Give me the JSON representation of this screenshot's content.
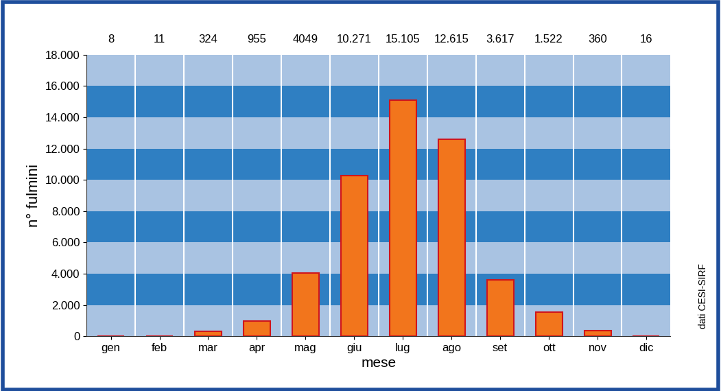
{
  "chart_data": {
    "type": "bar",
    "x_label": "mese",
    "y_label": "n° fulmini",
    "source": "dati CESI-SIRF",
    "categories": [
      "gen",
      "feb",
      "mar",
      "apr",
      "mag",
      "giu",
      "lug",
      "ago",
      "set",
      "ott",
      "nov",
      "dic"
    ],
    "values": [
      8,
      11,
      324,
      955,
      4049,
      10271,
      15105,
      12615,
      3617,
      1522,
      360,
      16
    ],
    "value_labels": [
      "8",
      "11",
      "324",
      "955",
      "4049",
      "10.271",
      "15.105",
      "12.615",
      "3.617",
      "1.522",
      "360",
      "16"
    ],
    "data_labels": true,
    "color": "#f2751c",
    "ylim": [
      0,
      18000
    ],
    "yticks": [
      {
        "value": 0,
        "label": "0"
      },
      {
        "value": 2000,
        "label": "2.000"
      },
      {
        "value": 4000,
        "label": "4.000"
      },
      {
        "value": 6000,
        "label": "6.000"
      },
      {
        "value": 8000,
        "label": "8.000"
      },
      {
        "value": 10000,
        "label": "10.000"
      },
      {
        "value": 12000,
        "label": "12.000"
      },
      {
        "value": 14000,
        "label": "14.000"
      },
      {
        "value": 16000,
        "label": "16.000"
      },
      {
        "value": 18000,
        "label": "18.000"
      }
    ]
  }
}
